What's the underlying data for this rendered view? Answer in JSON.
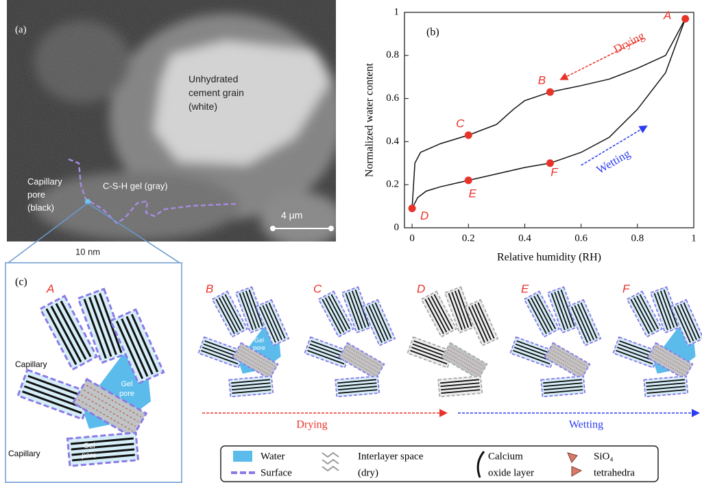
{
  "panel_a": {
    "label": "(a)",
    "grain_label": [
      "Unhydrated",
      "cement grain",
      "(white)"
    ],
    "pore_label": [
      "Capillary",
      "pore",
      "(black)"
    ],
    "gel_label": "C-S-H gel (gray)",
    "scale_bar": "4 μm",
    "zoom_label": "10 nm"
  },
  "panel_b": {
    "label": "(b)",
    "x_label": "Relative humidity (RH)",
    "y_label": "Normalized water content",
    "xlim": [
      -0.027,
      1
    ],
    "ylim": [
      0,
      1
    ],
    "xticks": [
      0,
      0.2,
      0.4,
      0.6,
      0.8,
      1
    ],
    "yticks": [
      0,
      0.2,
      0.4,
      0.6,
      0.8,
      1
    ],
    "drying_curve": {
      "x": [
        0.97,
        0.9,
        0.8,
        0.7,
        0.6,
        0.49,
        0.4,
        0.36,
        0.3,
        0.2,
        0.1,
        0.03,
        0.01,
        0.0
      ],
      "y": [
        0.97,
        0.8,
        0.74,
        0.69,
        0.66,
        0.63,
        0.59,
        0.55,
        0.48,
        0.43,
        0.39,
        0.35,
        0.3,
        0.09
      ]
    },
    "wetting_curve": {
      "x": [
        0.0,
        0.02,
        0.05,
        0.1,
        0.2,
        0.3,
        0.4,
        0.49,
        0.6,
        0.7,
        0.8,
        0.9,
        0.97
      ],
      "y": [
        0.09,
        0.14,
        0.17,
        0.19,
        0.22,
        0.25,
        0.28,
        0.3,
        0.35,
        0.42,
        0.55,
        0.72,
        0.97
      ]
    },
    "points": [
      {
        "label": "A",
        "x": 0.97,
        "y": 0.97
      },
      {
        "label": "B",
        "x": 0.49,
        "y": 0.63
      },
      {
        "label": "C",
        "x": 0.2,
        "y": 0.43
      },
      {
        "label": "D",
        "x": 0.0,
        "y": 0.09
      },
      {
        "label": "E",
        "x": 0.2,
        "y": 0.22
      },
      {
        "label": "F",
        "x": 0.49,
        "y": 0.3
      }
    ],
    "drying_annotation": "Drying",
    "wetting_annotation": "Wetting"
  },
  "panel_c": {
    "label": "(c)",
    "states": [
      "A",
      "B",
      "C",
      "D",
      "E",
      "F"
    ],
    "capillary_top": "Capillary",
    "capillary_bottom": "Capillary",
    "gel_pore_a1": [
      "Gel",
      "pore"
    ],
    "gel_pore_a2": [
      "Gel",
      "pore"
    ],
    "gel_pore_b": [
      "Gel",
      "pore"
    ],
    "drying": "Drying",
    "wetting": "Wetting",
    "legend": {
      "water": "Water",
      "surface": "Surface",
      "interlayer": [
        "Interlayer space",
        "(dry)"
      ],
      "calcium": [
        "Calcium",
        "oxide layer"
      ],
      "sio4": [
        "SiO₄",
        "tetrahedra"
      ]
    }
  }
}
